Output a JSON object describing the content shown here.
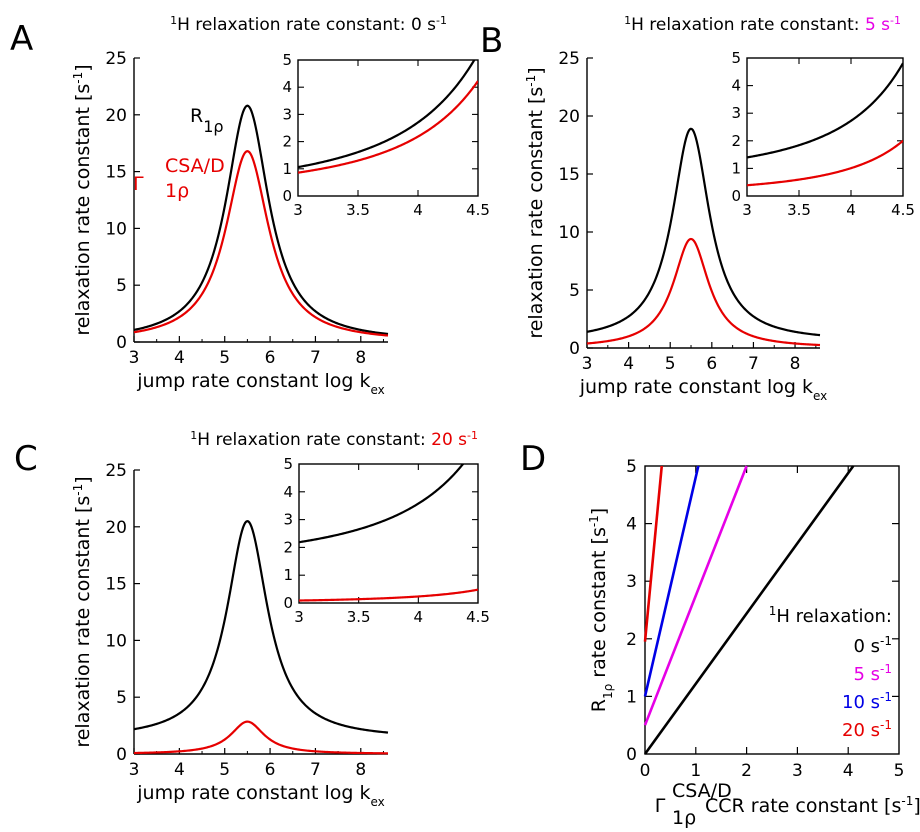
{
  "figure": {
    "panel_letters": [
      "A",
      "B",
      "C",
      "D"
    ],
    "axis_label_sub": "1ρ",
    "axis_label_sup": "CSA/D",
    "unit_sup": "-1",
    "colors": {
      "black": "#000000",
      "red": "#e60000",
      "magenta": "#e600e6",
      "blue": "#0000e6"
    }
  },
  "chart_data": [
    {
      "id": "A",
      "type": "line",
      "title_prefix": "1H relaxation rate constant: ",
      "title_value": "0 s-1",
      "title_value_color": "#000000",
      "xlabel": "jump rate constant log kex",
      "ylabel": "relaxation rate constant [s-1]",
      "xlim": [
        3,
        8.6
      ],
      "ylim": [
        0,
        25
      ],
      "xticks": [
        3,
        4,
        5,
        6,
        7,
        8
      ],
      "yticks": [
        0,
        5,
        10,
        15,
        20,
        25
      ],
      "series": [
        {
          "name": "R1ρ",
          "color": "#000000",
          "model": {
            "center": 5.5,
            "peak": 20.8,
            "base": 0,
            "width": 0.58
          }
        },
        {
          "name": "ΓCSA/D 1ρ",
          "color": "#e60000",
          "model": {
            "center": 5.5,
            "peak": 16.8,
            "base": 0,
            "width": 0.58
          }
        }
      ],
      "inset": {
        "xlim": [
          3,
          4.5
        ],
        "ylim": [
          0,
          5
        ],
        "xticks": [
          "3",
          "3.5",
          "4",
          "4.5"
        ],
        "yticks": [
          0,
          1,
          2,
          3,
          4,
          5
        ]
      }
    },
    {
      "id": "B",
      "type": "line",
      "title_prefix": "1H relaxation rate constant: ",
      "title_value": "5 s-1",
      "title_value_color": "#e600e6",
      "xlabel": "jump rate constant log kex",
      "ylabel": "relaxation rate constant [s-1]",
      "xlim": [
        3,
        8.6
      ],
      "ylim": [
        0,
        25
      ],
      "xticks": [
        3,
        4,
        5,
        6,
        7,
        8
      ],
      "yticks": [
        0,
        5,
        10,
        15,
        20,
        25
      ],
      "series": [
        {
          "name": "R1ρ",
          "color": "#000000",
          "model": {
            "center": 5.5,
            "peak": 18.9,
            "base": 0.55,
            "width": 0.55
          }
        },
        {
          "name": "ΓCSA/D 1ρ",
          "color": "#e60000",
          "model": {
            "center": 5.5,
            "peak": 9.4,
            "base": 0,
            "width": 0.52
          }
        }
      ],
      "inset": {
        "xlim": [
          3,
          4.5
        ],
        "ylim": [
          0,
          5
        ],
        "xticks": [
          "3",
          "3.5",
          "4",
          "4.5"
        ],
        "yticks": [
          0,
          1,
          2,
          3,
          4,
          5
        ]
      }
    },
    {
      "id": "C",
      "type": "line",
      "title_prefix": "1H relaxation rate constant: ",
      "title_value": "20 s-1",
      "title_value_color": "#e60000",
      "xlabel": "jump rate constant log kex",
      "ylabel": "relaxation rate constant [s-1]",
      "xlim": [
        3,
        8.6
      ],
      "ylim": [
        0,
        25
      ],
      "xticks": [
        3,
        4,
        5,
        6,
        7,
        8
      ],
      "yticks": [
        0,
        5,
        10,
        15,
        20,
        25
      ],
      "series": [
        {
          "name": "R1ρ",
          "color": "#000000",
          "model": {
            "center": 5.5,
            "peak": 20.5,
            "base": 1.3,
            "width": 0.55
          }
        },
        {
          "name": "ΓCSA/D 1ρ",
          "color": "#e60000",
          "model": {
            "center": 5.5,
            "peak": 2.85,
            "base": 0,
            "width": 0.45
          }
        }
      ],
      "inset": {
        "xlim": [
          3,
          4.5
        ],
        "ylim": [
          0,
          5
        ],
        "xticks": [
          "3",
          "3.5",
          "4",
          "4.5"
        ],
        "yticks": [
          0,
          1,
          2,
          3,
          4,
          5
        ]
      }
    },
    {
      "id": "D",
      "type": "line",
      "xlabel_suffix": " CCR rate constant [s-1]",
      "ylabel": "R1ρ rate constant [s-1]",
      "xlim": [
        0,
        5
      ],
      "ylim": [
        0,
        5
      ],
      "xticks": [
        0,
        1,
        2,
        3,
        4,
        5
      ],
      "yticks": [
        0,
        1,
        2,
        3,
        4,
        5
      ],
      "legend_title": "1H relaxation:",
      "series": [
        {
          "name": "0 s-1",
          "color": "#000000",
          "x": [
            0,
            4.1
          ],
          "y": [
            0,
            5
          ]
        },
        {
          "name": "5 s-1",
          "color": "#e600e6",
          "x": [
            0,
            2.0
          ],
          "y": [
            0.5,
            5
          ]
        },
        {
          "name": "10 s-1",
          "color": "#0000e6",
          "x": [
            0,
            1.05
          ],
          "y": [
            1.0,
            5
          ]
        },
        {
          "name": "20 s-1",
          "color": "#e60000",
          "x": [
            0,
            0.33
          ],
          "y": [
            1.95,
            5
          ]
        }
      ]
    }
  ]
}
